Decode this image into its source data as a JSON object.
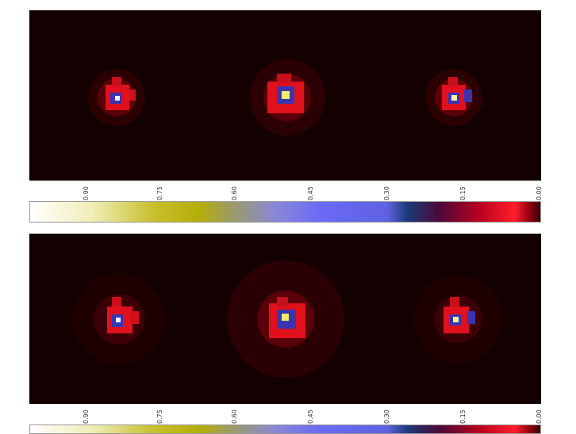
{
  "colorbar": {
    "ticks": [
      "0.90",
      "0.75",
      "0.60",
      "0.45",
      "0.30",
      "0.15",
      "0.00"
    ],
    "colors": [
      "#ffffff",
      "#b5ae08",
      "#6a6af7",
      "#1b3a78",
      "#ff1f2c",
      "#3a0000"
    ]
  },
  "panels": [
    {
      "name": "top",
      "spots": 3
    },
    {
      "name": "bottom",
      "spots": 3
    }
  ]
}
